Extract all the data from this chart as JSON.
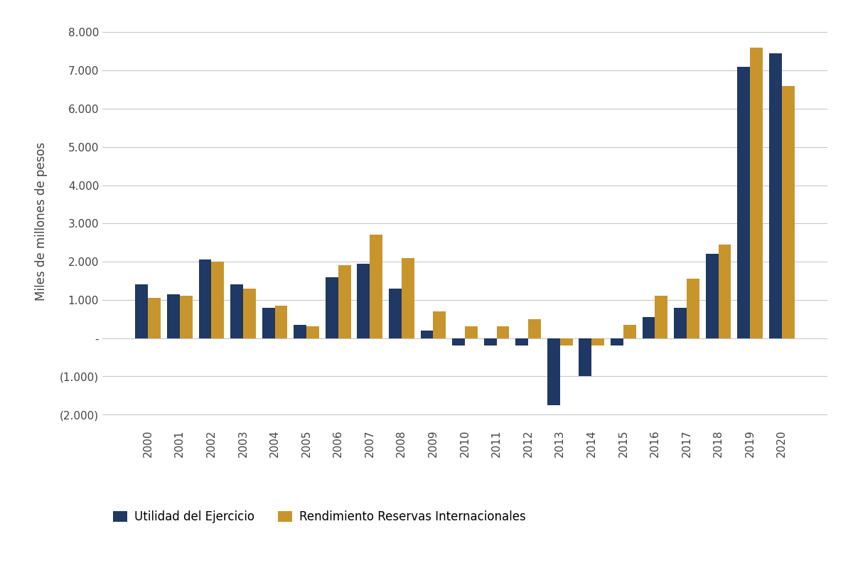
{
  "years": [
    2000,
    2001,
    2002,
    2003,
    2004,
    2005,
    2006,
    2007,
    2008,
    2009,
    2010,
    2011,
    2012,
    2013,
    2014,
    2015,
    2016,
    2017,
    2018,
    2019,
    2020
  ],
  "utilidad": [
    1400,
    1150,
    2050,
    1400,
    800,
    350,
    1600,
    1950,
    1300,
    200,
    -200,
    -200,
    -200,
    -1750,
    -1000,
    -200,
    550,
    800,
    2200,
    7100,
    7450
  ],
  "rendimiento": [
    1050,
    1100,
    2000,
    1300,
    850,
    300,
    1900,
    2700,
    2100,
    700,
    300,
    300,
    500,
    -200,
    -200,
    350,
    1100,
    1550,
    2450,
    7600,
    6600
  ],
  "color_utilidad": "#1f3864",
  "color_rendimiento": "#c8952c",
  "ylabel": "Miles de millones de pesos",
  "ylim_min": -2300,
  "ylim_max": 8400,
  "yticks": [
    -2000,
    -1000,
    0,
    1000,
    2000,
    3000,
    4000,
    5000,
    6000,
    7000,
    8000
  ],
  "legend_utilidad": "Utilidad del Ejercicio",
  "legend_rendimiento": "Rendimiento Reservas Internacionales",
  "background_color": "#ffffff",
  "grid_color": "#c8c8c8"
}
